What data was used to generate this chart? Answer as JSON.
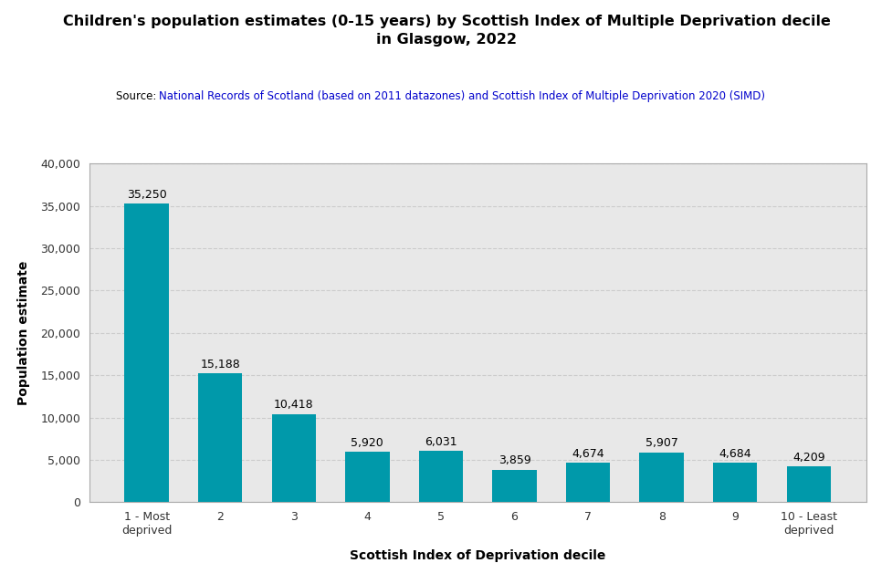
{
  "title_line1": "Children's population estimates (0-15 years) by Scottish Index of Multiple Deprivation decile",
  "title_line2": "in Glasgow, 2022",
  "source_prefix": "Source: ",
  "source_text": "National Records of Scotland (based on 2011 datazones) and Scottish Index of Multiple Deprivation 2020 (SIMD)",
  "xlabel": "Scottish Index of Deprivation decile",
  "ylabel": "Population estimate",
  "categories": [
    "1 - Most\ndeprived",
    "2",
    "3",
    "4",
    "5",
    "6",
    "7",
    "8",
    "9",
    "10 - Least\ndeprived"
  ],
  "values": [
    35250,
    15188,
    10418,
    5920,
    6031,
    3859,
    4674,
    5907,
    4684,
    4209
  ],
  "bar_color": "#0099aa",
  "plot_bg_color": "#e8e8e8",
  "outer_bg_color": "#ffffff",
  "border_color": "#aaaaaa",
  "ylim": [
    0,
    40000
  ],
  "yticks": [
    0,
    5000,
    10000,
    15000,
    20000,
    25000,
    30000,
    35000,
    40000
  ],
  "title_fontsize": 11.5,
  "source_fontsize": 8.5,
  "label_fontsize": 10,
  "tick_fontsize": 9,
  "value_label_fontsize": 9,
  "title_color": "#000000",
  "source_label_color": "#000000",
  "source_text_color": "#0000cc",
  "axis_label_color": "#000000",
  "tick_color": "#333333",
  "grid_color": "#cccccc"
}
